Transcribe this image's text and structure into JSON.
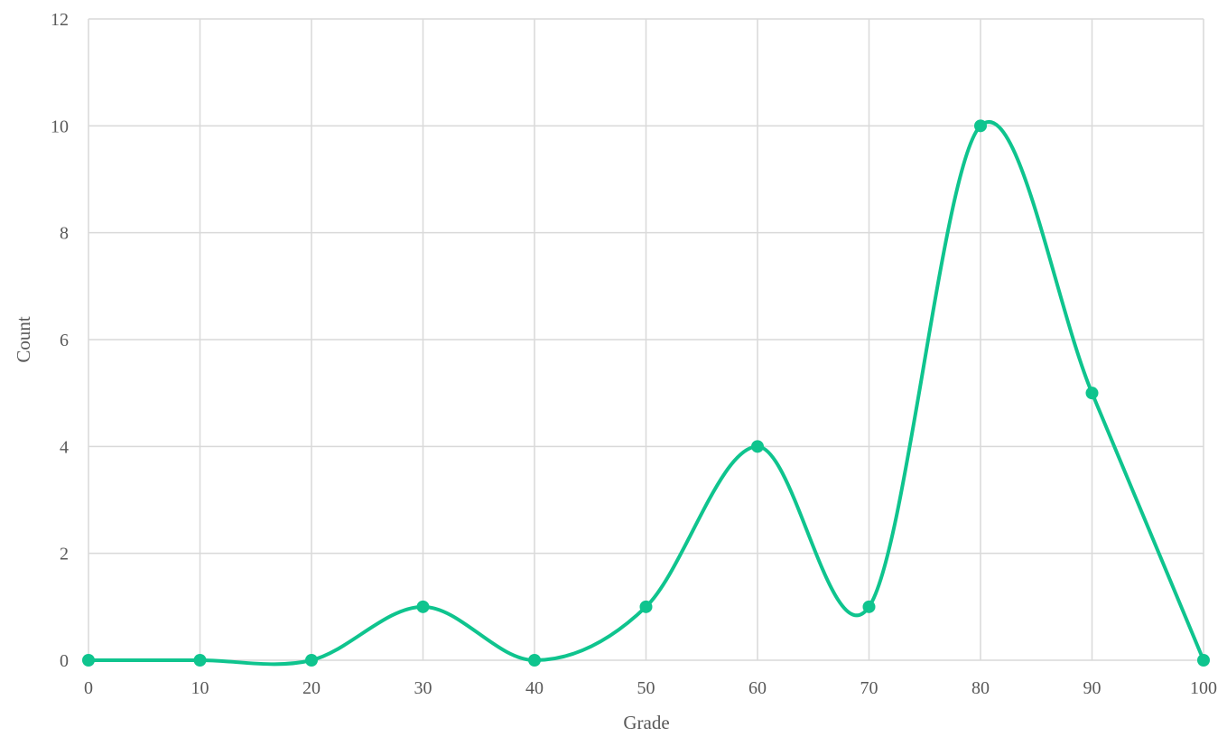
{
  "chart_data": {
    "type": "line",
    "smooth": true,
    "xlabel": "Grade",
    "ylabel": "Count",
    "xlim": [
      0,
      100
    ],
    "ylim": [
      0,
      12
    ],
    "x_ticks": [
      0,
      10,
      20,
      30,
      40,
      50,
      60,
      70,
      80,
      90,
      100
    ],
    "y_ticks": [
      0,
      2,
      4,
      6,
      8,
      10,
      12
    ],
    "grid": true,
    "legend": "none",
    "series": [
      {
        "color": "#0fc48e",
        "x": [
          0,
          10,
          20,
          30,
          40,
          50,
          60,
          70,
          80,
          90,
          100
        ],
        "y": [
          0,
          0,
          0,
          1,
          0,
          1,
          4,
          1,
          10,
          5,
          0
        ]
      }
    ]
  }
}
